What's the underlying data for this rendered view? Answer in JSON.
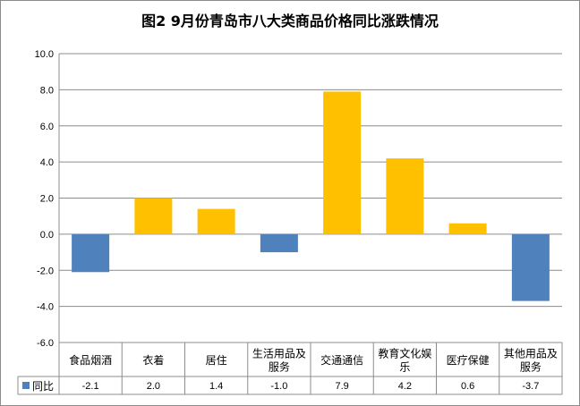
{
  "chart_data": {
    "type": "bar",
    "title": "图2  9月份青岛市八大类商品价格同比涨跌情况",
    "categories": [
      [
        "食品烟酒"
      ],
      [
        "衣着"
      ],
      [
        "居住"
      ],
      [
        "生活用品及",
        "服务"
      ],
      [
        "交通通信"
      ],
      [
        "教育文化娱",
        "乐"
      ],
      [
        "医疗保健"
      ],
      [
        "其他用品及",
        "服务"
      ]
    ],
    "series": [
      {
        "name": "同比",
        "values": [
          -2.1,
          2.0,
          1.4,
          -1.0,
          7.9,
          4.2,
          0.6,
          -3.7
        ],
        "value_labels": [
          "-2.1",
          "2.0",
          "1.4",
          "-1.0",
          "7.9",
          "4.2",
          "0.6",
          "-3.7"
        ]
      }
    ],
    "ylim": [
      -6.0,
      10.0
    ],
    "yticks": [
      "10.0",
      "8.0",
      "6.0",
      "4.0",
      "2.0",
      "0.0",
      "-2.0",
      "-4.0",
      "-6.0"
    ],
    "grid": true,
    "legend": "bottom-left-in-data-table",
    "colors": {
      "positive": "#ffc000",
      "negative": "#4f81bd",
      "legend_key": "#4f81bd"
    }
  }
}
